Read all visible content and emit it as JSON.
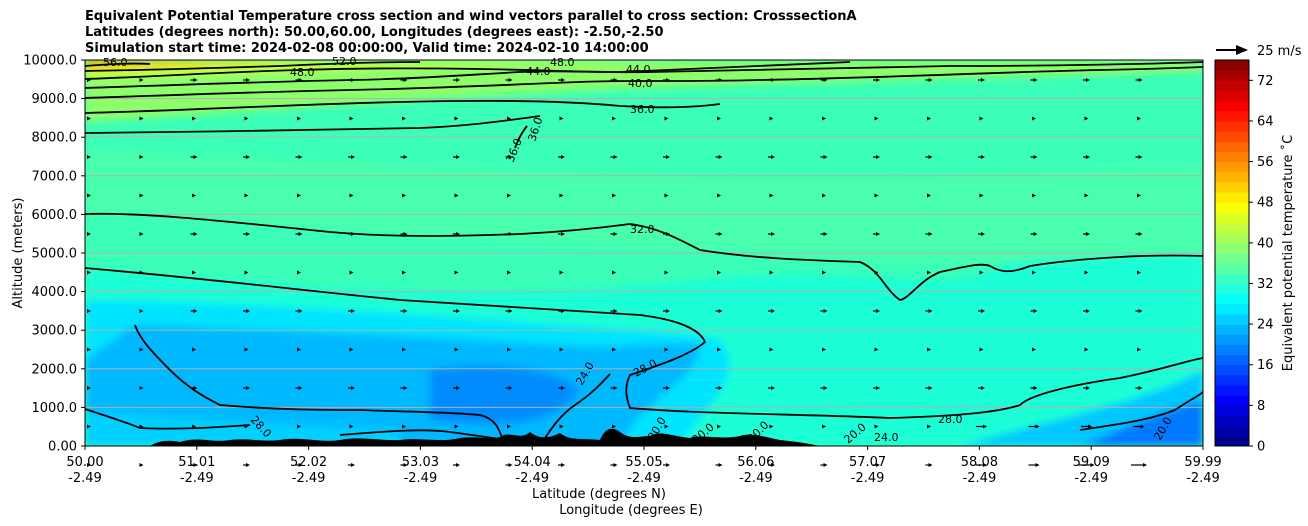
{
  "title": {
    "line1": "Equivalent Potential Temperature cross section and wind vectors parallel to cross section: CrosssectionA",
    "line2": "Latitudes (degrees north): 50.00,60.00, Longitudes (degrees east): -2.50,-2.50",
    "line3": "Simulation start time: 2024-02-08 00:00:00, Valid time: 2024-02-10 14:00:00"
  },
  "chart_data": {
    "type": "heatmap",
    "xlabel_lat": "Latitude (degrees N)",
    "xlabel_lon": "Longitude (degrees E)",
    "ylabel": "Altitude (meters)",
    "colorbar_label": "Equivalent potential temperature ˚C",
    "quiver_key": "25 m/s",
    "ylim": [
      0,
      10000
    ],
    "xlim": [
      50.0,
      59.99
    ],
    "y_ticks": [
      "0.00",
      "1000.0",
      "2000.0",
      "3000.0",
      "4000.0",
      "5000.0",
      "6000.0",
      "7000.0",
      "8000.0",
      "9000.0",
      "10000.0"
    ],
    "x_ticks_lat": [
      "50.00",
      "51.01",
      "52.02",
      "53.03",
      "54.04",
      "55.05",
      "56.06",
      "57.07",
      "58.08",
      "59.09",
      "59.99"
    ],
    "x_ticks_lon": [
      "-2.49",
      "-2.49",
      "-2.49",
      "-2.49",
      "-2.49",
      "-2.49",
      "-2.49",
      "-2.49",
      "-2.49",
      "-2.49",
      "-2.49"
    ],
    "colorbar_ticks": [
      "0",
      "8",
      "16",
      "24",
      "32",
      "40",
      "48",
      "56",
      "64",
      "72"
    ],
    "colorbar_range": [
      0,
      76
    ],
    "contour_levels": [
      20,
      24,
      28,
      32,
      36,
      40,
      44,
      48,
      52,
      56
    ],
    "contour_labels": [
      "56.0",
      "52.0",
      "48.0",
      "48.0",
      "44.0",
      "44.0",
      "40.0",
      "36.0",
      "36.0",
      "36.0",
      "32.0",
      "28.0",
      "28.0",
      "28.0",
      "24.0",
      "20.0",
      "20.0",
      "20.0",
      "20.0",
      "24.0",
      "20.0"
    ],
    "grid": "horizontal",
    "terrain": "black filled orography along the bottom from ~51 to ~57 degrees N"
  }
}
